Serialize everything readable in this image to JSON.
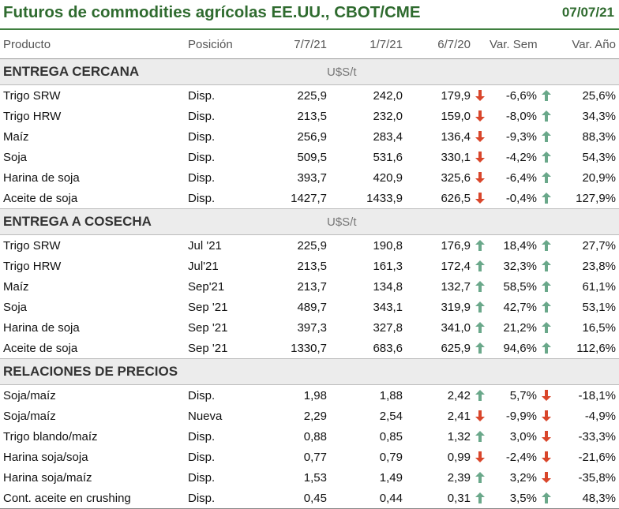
{
  "header": {
    "title": "Futuros de commodities agrícolas EE.UU., CBOT/CME",
    "date": "07/07/21"
  },
  "columns": {
    "producto": "Producto",
    "posicion": "Posición",
    "d1": "7/7/21",
    "d2": "1/7/21",
    "d3": "6/7/20",
    "var_sem": "Var. Sem.",
    "var_anio": "Var. Año"
  },
  "colors": {
    "up": "#6aa88a",
    "down": "#d9462b",
    "accent": "#2f6b2f"
  },
  "sections": [
    {
      "label": "ENTREGA CERCANA",
      "unit": "U$S/t",
      "rows": [
        {
          "producto": "Trigo SRW",
          "posicion": "Disp.",
          "d1": "225,9",
          "d2": "242,0",
          "d3": "179,9",
          "icon1": "down",
          "var_sem": "-6,6%",
          "icon2": "up",
          "var_anio": "25,6%"
        },
        {
          "producto": "Trigo HRW",
          "posicion": "Disp.",
          "d1": "213,5",
          "d2": "232,0",
          "d3": "159,0",
          "icon1": "down",
          "var_sem": "-8,0%",
          "icon2": "up",
          "var_anio": "34,3%"
        },
        {
          "producto": "Maíz",
          "posicion": "Disp.",
          "d1": "256,9",
          "d2": "283,4",
          "d3": "136,4",
          "icon1": "down",
          "var_sem": "-9,3%",
          "icon2": "up",
          "var_anio": "88,3%"
        },
        {
          "producto": "Soja",
          "posicion": "Disp.",
          "d1": "509,5",
          "d2": "531,6",
          "d3": "330,1",
          "icon1": "down",
          "var_sem": "-4,2%",
          "icon2": "up",
          "var_anio": "54,3%"
        },
        {
          "producto": "Harina de soja",
          "posicion": "Disp.",
          "d1": "393,7",
          "d2": "420,9",
          "d3": "325,6",
          "icon1": "down",
          "var_sem": "-6,4%",
          "icon2": "up",
          "var_anio": "20,9%"
        },
        {
          "producto": "Aceite de soja",
          "posicion": "Disp.",
          "d1": "1427,7",
          "d2": "1433,9",
          "d3": "626,5",
          "icon1": "down",
          "var_sem": "-0,4%",
          "icon2": "up",
          "var_anio": "127,9%"
        }
      ]
    },
    {
      "label": "ENTREGA A COSECHA",
      "unit": "U$S/t",
      "rows": [
        {
          "producto": "Trigo SRW",
          "posicion": "Jul '21",
          "d1": "225,9",
          "d2": "190,8",
          "d3": "176,9",
          "icon1": "up",
          "var_sem": "18,4%",
          "icon2": "up",
          "var_anio": "27,7%"
        },
        {
          "producto": "Trigo HRW",
          "posicion": "Jul'21",
          "d1": "213,5",
          "d2": "161,3",
          "d3": "172,4",
          "icon1": "up",
          "var_sem": "32,3%",
          "icon2": "up",
          "var_anio": "23,8%"
        },
        {
          "producto": "Maíz",
          "posicion": "Sep'21",
          "d1": "213,7",
          "d2": "134,8",
          "d3": "132,7",
          "icon1": "up",
          "var_sem": "58,5%",
          "icon2": "up",
          "var_anio": "61,1%"
        },
        {
          "producto": "Soja",
          "posicion": "Sep '21",
          "d1": "489,7",
          "d2": "343,1",
          "d3": "319,9",
          "icon1": "up",
          "var_sem": "42,7%",
          "icon2": "up",
          "var_anio": "53,1%"
        },
        {
          "producto": "Harina de soja",
          "posicion": "Sep '21",
          "d1": "397,3",
          "d2": "327,8",
          "d3": "341,0",
          "icon1": "up",
          "var_sem": "21,2%",
          "icon2": "up",
          "var_anio": "16,5%"
        },
        {
          "producto": "Aceite de soja",
          "posicion": "Sep '21",
          "d1": "1330,7",
          "d2": "683,6",
          "d3": "625,9",
          "icon1": "up",
          "var_sem": "94,6%",
          "icon2": "up",
          "var_anio": "112,6%"
        }
      ]
    },
    {
      "label": "RELACIONES DE PRECIOS",
      "unit": "",
      "rows": [
        {
          "producto": "Soja/maíz",
          "posicion": "Disp.",
          "d1": "1,98",
          "d2": "1,88",
          "d3": "2,42",
          "icon1": "up",
          "var_sem": "5,7%",
          "icon2": "down",
          "var_anio": "-18,1%"
        },
        {
          "producto": "Soja/maíz",
          "posicion": "Nueva",
          "d1": "2,29",
          "d2": "2,54",
          "d3": "2,41",
          "icon1": "down",
          "var_sem": "-9,9%",
          "icon2": "down",
          "var_anio": "-4,9%"
        },
        {
          "producto": "Trigo blando/maíz",
          "posicion": "Disp.",
          "d1": "0,88",
          "d2": "0,85",
          "d3": "1,32",
          "icon1": "up",
          "var_sem": "3,0%",
          "icon2": "down",
          "var_anio": "-33,3%"
        },
        {
          "producto": "Harina soja/soja",
          "posicion": "Disp.",
          "d1": "0,77",
          "d2": "0,79",
          "d3": "0,99",
          "icon1": "down",
          "var_sem": "-2,4%",
          "icon2": "down",
          "var_anio": "-21,6%"
        },
        {
          "producto": "Harina soja/maíz",
          "posicion": "Disp.",
          "d1": "1,53",
          "d2": "1,49",
          "d3": "2,39",
          "icon1": "up",
          "var_sem": "3,2%",
          "icon2": "down",
          "var_anio": "-35,8%"
        },
        {
          "producto": "Cont. aceite en crushing",
          "posicion": "Disp.",
          "d1": "0,45",
          "d2": "0,44",
          "d3": "0,31",
          "icon1": "up",
          "var_sem": "3,5%",
          "icon2": "up",
          "var_anio": "48,3%"
        }
      ]
    }
  ]
}
